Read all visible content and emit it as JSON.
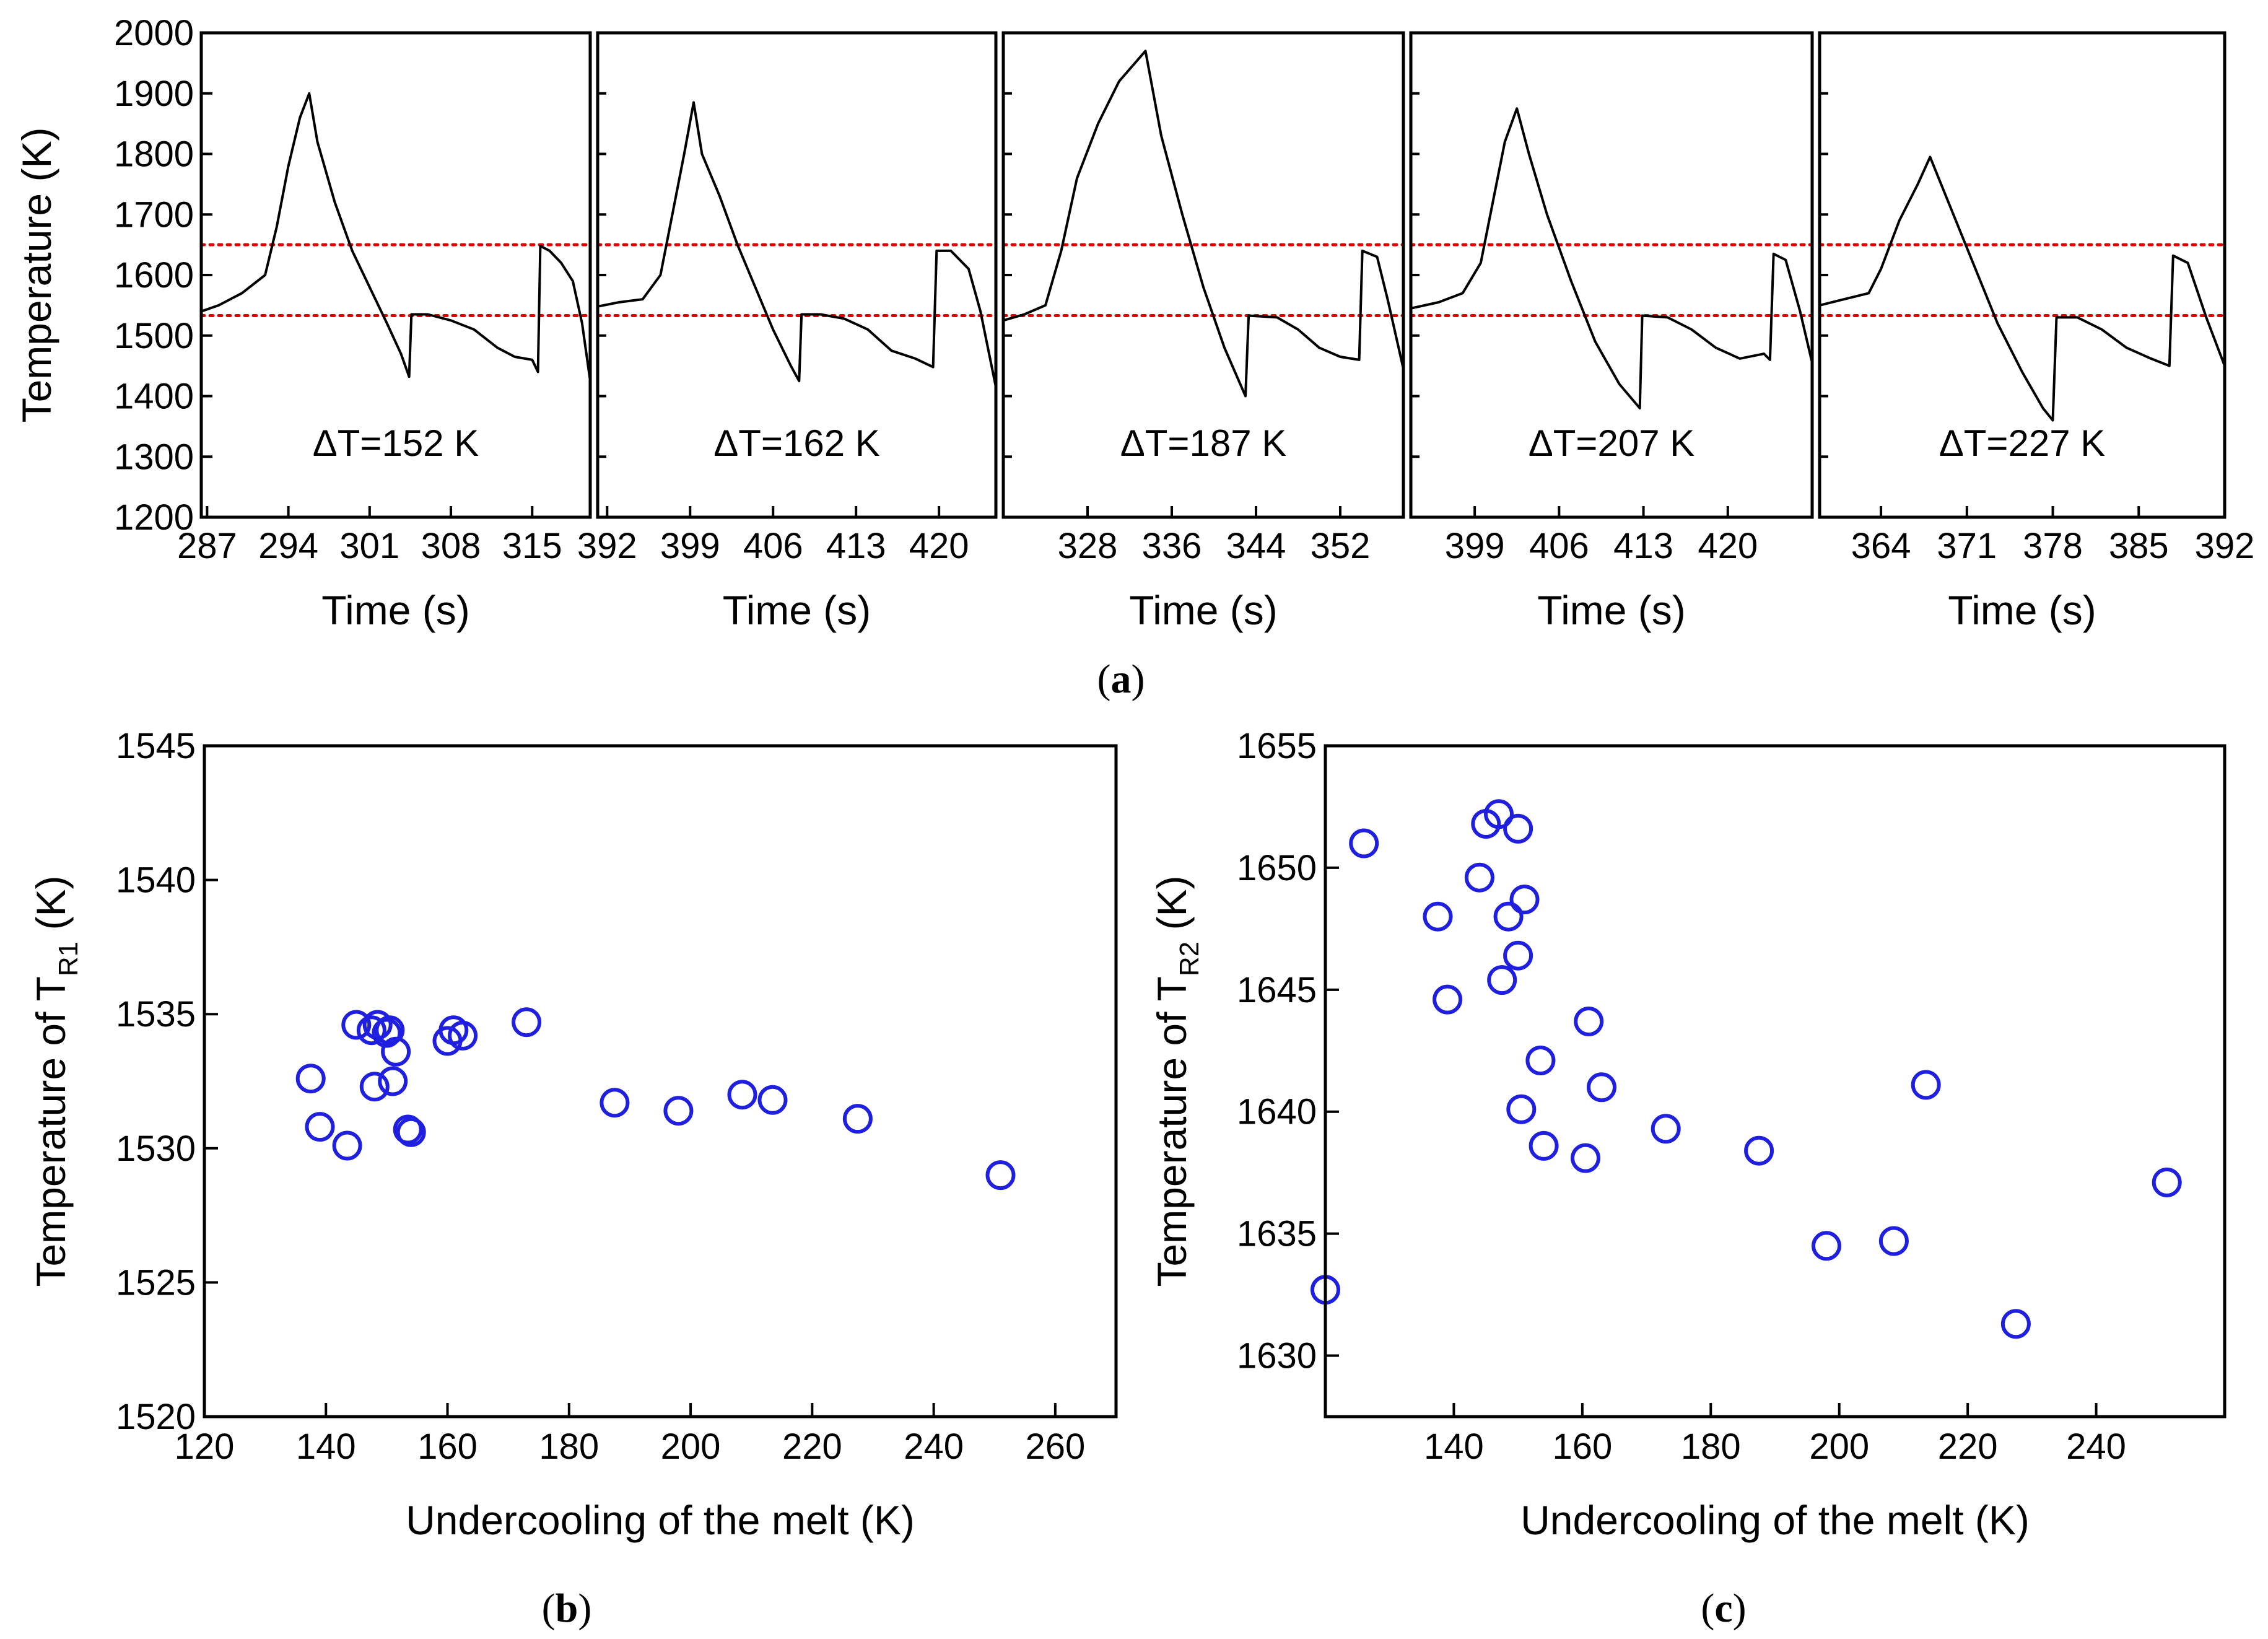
{
  "figure": {
    "captions": {
      "a": "a",
      "b": "b",
      "c": "c"
    }
  },
  "chart_data": [
    {
      "id": "a",
      "type": "line",
      "ylabel": "Temperature (K)",
      "ylim": [
        1200,
        2000
      ],
      "yticks": [
        1200,
        1300,
        1400,
        1500,
        1600,
        1700,
        1800,
        1900,
        2000
      ],
      "reference_lines_y": [
        1650,
        1533
      ],
      "panels": [
        {
          "annotation": "ΔT=152 K",
          "xlabel": "Time (s)",
          "xlim": [
            286.5,
            320
          ],
          "xticks": [
            287,
            294,
            301,
            308,
            315
          ],
          "trace": [
            [
              286.5,
              1540
            ],
            [
              288,
              1550
            ],
            [
              290,
              1570
            ],
            [
              292,
              1600
            ],
            [
              293,
              1680
            ],
            [
              294,
              1780
            ],
            [
              295,
              1860
            ],
            [
              295.8,
              1900
            ],
            [
              296.5,
              1820
            ],
            [
              298,
              1720
            ],
            [
              299.5,
              1640
            ],
            [
              301,
              1580
            ],
            [
              302.5,
              1520
            ],
            [
              303.7,
              1470
            ],
            [
              304.4,
              1432
            ],
            [
              304.6,
              1535
            ],
            [
              306,
              1535
            ],
            [
              308,
              1525
            ],
            [
              310,
              1510
            ],
            [
              312,
              1480
            ],
            [
              313.5,
              1465
            ],
            [
              315,
              1460
            ],
            [
              315.5,
              1440
            ],
            [
              315.7,
              1648
            ],
            [
              316.5,
              1640
            ],
            [
              317.5,
              1620
            ],
            [
              318.5,
              1590
            ],
            [
              319.3,
              1520
            ],
            [
              320,
              1425
            ]
          ]
        },
        {
          "annotation": "ΔT=162 K",
          "xlabel": "Time (s)",
          "xlim": [
            391.2,
            424.8
          ],
          "xticks": [
            392,
            399,
            406,
            413,
            420
          ],
          "trace": [
            [
              391.2,
              1548
            ],
            [
              393,
              1555
            ],
            [
              395,
              1560
            ],
            [
              396.5,
              1600
            ],
            [
              397.5,
              1700
            ],
            [
              398.5,
              1800
            ],
            [
              399.3,
              1885
            ],
            [
              400,
              1800
            ],
            [
              401.5,
              1730
            ],
            [
              403,
              1650
            ],
            [
              404.5,
              1580
            ],
            [
              406,
              1510
            ],
            [
              407.5,
              1450
            ],
            [
              408.2,
              1425
            ],
            [
              408.4,
              1535
            ],
            [
              410,
              1535
            ],
            [
              412,
              1528
            ],
            [
              414,
              1510
            ],
            [
              416,
              1475
            ],
            [
              418,
              1462
            ],
            [
              419.5,
              1448
            ],
            [
              419.8,
              1640
            ],
            [
              421,
              1640
            ],
            [
              422.5,
              1610
            ],
            [
              423.5,
              1540
            ],
            [
              424.8,
              1415
            ]
          ]
        },
        {
          "annotation": "ΔT=187 K",
          "xlabel": "Time (s)",
          "xlim": [
            320,
            358
          ],
          "xticks": [
            328,
            336,
            344,
            352
          ],
          "trace": [
            [
              320,
              1525
            ],
            [
              322,
              1535
            ],
            [
              324,
              1550
            ],
            [
              325.5,
              1640
            ],
            [
              327,
              1760
            ],
            [
              329,
              1850
            ],
            [
              331,
              1920
            ],
            [
              333,
              1960
            ],
            [
              333.5,
              1970
            ],
            [
              335,
              1830
            ],
            [
              337,
              1700
            ],
            [
              339,
              1580
            ],
            [
              341,
              1480
            ],
            [
              343,
              1400
            ],
            [
              343.3,
              1533
            ],
            [
              346,
              1530
            ],
            [
              348,
              1510
            ],
            [
              350,
              1480
            ],
            [
              352,
              1465
            ],
            [
              353.8,
              1460
            ],
            [
              354.1,
              1640
            ],
            [
              355.5,
              1630
            ],
            [
              356.5,
              1560
            ],
            [
              358,
              1445
            ]
          ]
        },
        {
          "annotation": "ΔT=207 K",
          "xlabel": "Time (s)",
          "xlim": [
            393.7,
            427
          ],
          "xticks": [
            399,
            406,
            413,
            420
          ],
          "trace": [
            [
              393.7,
              1545
            ],
            [
              396,
              1555
            ],
            [
              398,
              1570
            ],
            [
              399.5,
              1620
            ],
            [
              400.5,
              1720
            ],
            [
              401.5,
              1820
            ],
            [
              402.5,
              1875
            ],
            [
              403.5,
              1800
            ],
            [
              405,
              1700
            ],
            [
              407,
              1590
            ],
            [
              409,
              1490
            ],
            [
              411,
              1420
            ],
            [
              412.7,
              1380
            ],
            [
              412.9,
              1533
            ],
            [
              415,
              1530
            ],
            [
              417,
              1510
            ],
            [
              419,
              1480
            ],
            [
              421,
              1462
            ],
            [
              423,
              1470
            ],
            [
              423.5,
              1460
            ],
            [
              423.8,
              1635
            ],
            [
              424.8,
              1625
            ],
            [
              426,
              1540
            ],
            [
              427,
              1455
            ]
          ]
        },
        {
          "annotation": "ΔT=227 K",
          "xlabel": "Time (s)",
          "xlim": [
            359,
            392
          ],
          "xticks": [
            364,
            371,
            378,
            385,
            392
          ],
          "trace": [
            [
              359,
              1550
            ],
            [
              361,
              1560
            ],
            [
              363,
              1570
            ],
            [
              364,
              1610
            ],
            [
              365.5,
              1690
            ],
            [
              367,
              1750
            ],
            [
              368,
              1795
            ],
            [
              369.5,
              1720
            ],
            [
              371.5,
              1620
            ],
            [
              373.5,
              1520
            ],
            [
              375.5,
              1440
            ],
            [
              377.2,
              1380
            ],
            [
              378,
              1360
            ],
            [
              378.3,
              1530
            ],
            [
              380,
              1530
            ],
            [
              382,
              1510
            ],
            [
              384,
              1480
            ],
            [
              386,
              1462
            ],
            [
              387.5,
              1450
            ],
            [
              387.8,
              1632
            ],
            [
              389,
              1620
            ],
            [
              390.5,
              1530
            ],
            [
              392,
              1450
            ]
          ]
        }
      ]
    },
    {
      "id": "b",
      "type": "scatter",
      "xlabel": "Undercooling of the melt (K)",
      "ylabel_main": "Temperature of T",
      "ylabel_sub": "R1",
      "ylabel_suffix": " (K)",
      "xlim": [
        120,
        270
      ],
      "ylim": [
        1520,
        1545
      ],
      "xticks": [
        120,
        140,
        160,
        180,
        200,
        220,
        240,
        260
      ],
      "yticks": [
        1520,
        1525,
        1530,
        1535,
        1540,
        1545
      ],
      "points": [
        [
          137.5,
          1532.6
        ],
        [
          139,
          1530.8
        ],
        [
          143.5,
          1530.1
        ],
        [
          145,
          1534.6
        ],
        [
          147.5,
          1534.4
        ],
        [
          148,
          1532.3
        ],
        [
          148.5,
          1534.6
        ],
        [
          150,
          1534.3
        ],
        [
          150.5,
          1534.4
        ],
        [
          151,
          1532.5
        ],
        [
          151.5,
          1533.6
        ],
        [
          153.5,
          1530.7
        ],
        [
          154,
          1530.6
        ],
        [
          160,
          1534
        ],
        [
          161,
          1534.4
        ],
        [
          162.5,
          1534.2
        ],
        [
          173,
          1534.7
        ],
        [
          187.5,
          1531.7
        ],
        [
          198,
          1531.4
        ],
        [
          208.5,
          1532
        ],
        [
          213.5,
          1531.8
        ],
        [
          227.5,
          1531.1
        ],
        [
          251,
          1529
        ]
      ]
    },
    {
      "id": "c",
      "type": "scatter",
      "xlabel": "Undercooling of the melt (K)",
      "ylabel_main": "Temperature of T",
      "ylabel_sub": "R2",
      "ylabel_suffix": " (K)",
      "xlim": [
        120,
        260
      ],
      "ylim": [
        1627.5,
        1655
      ],
      "xticks": [
        140,
        160,
        180,
        200,
        220,
        240
      ],
      "yticks": [
        1630,
        1635,
        1640,
        1645,
        1650,
        1655
      ],
      "points": [
        [
          120,
          1632.7
        ],
        [
          126,
          1651
        ],
        [
          137.5,
          1648
        ],
        [
          139,
          1644.6
        ],
        [
          144,
          1649.6
        ],
        [
          145,
          1651.8
        ],
        [
          147,
          1652.2
        ],
        [
          147.5,
          1645.4
        ],
        [
          148.5,
          1648
        ],
        [
          150,
          1651.6
        ],
        [
          150,
          1646.4
        ],
        [
          150.5,
          1640.1
        ],
        [
          151,
          1648.7
        ],
        [
          153.5,
          1642.1
        ],
        [
          154,
          1638.6
        ],
        [
          160.5,
          1638.1
        ],
        [
          161,
          1643.7
        ],
        [
          163,
          1641
        ],
        [
          173,
          1639.3
        ],
        [
          187.5,
          1638.4
        ],
        [
          198,
          1634.5
        ],
        [
          208.5,
          1634.7
        ],
        [
          213.5,
          1641.1
        ],
        [
          227.5,
          1631.3
        ],
        [
          251,
          1637.1
        ]
      ]
    }
  ]
}
